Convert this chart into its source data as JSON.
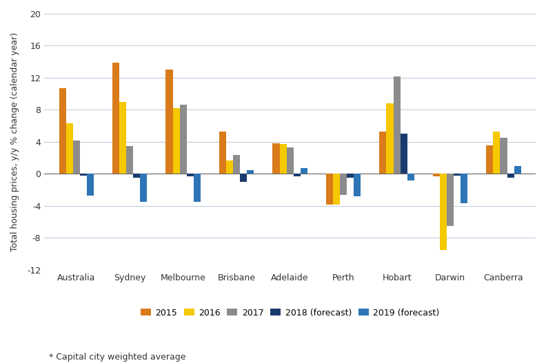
{
  "categories": [
    "Australia",
    "Sydney",
    "Melbourne",
    "Brisbane",
    "Adelaide",
    "Perth",
    "Hobart",
    "Darwin",
    "Canberra"
  ],
  "series": {
    "2015": [
      10.7,
      13.9,
      13.0,
      5.3,
      3.8,
      -3.8,
      5.3,
      -0.3,
      3.6
    ],
    "2016": [
      6.3,
      9.0,
      8.2,
      1.7,
      3.7,
      -3.8,
      8.8,
      -9.5,
      5.3
    ],
    "2017": [
      4.2,
      3.5,
      8.6,
      2.4,
      3.3,
      -2.6,
      12.2,
      -6.5,
      4.5
    ],
    "2018 (forecast)": [
      -0.2,
      -0.5,
      -0.3,
      -1.0,
      -0.3,
      -0.5,
      5.0,
      -0.2,
      -0.5
    ],
    "2019 (forecast)": [
      -2.7,
      -3.5,
      -3.5,
      0.5,
      0.7,
      -2.8,
      -0.8,
      -3.7,
      1.0
    ]
  },
  "colors": {
    "2015": "#D97B1A",
    "2016": "#F5C800",
    "2017": "#8C8C8C",
    "2018 (forecast)": "#1A3B6E",
    "2019 (forecast)": "#2E75B6"
  },
  "ylabel": "Total housing prices, y/y % change (calendar year)",
  "ylim": [
    -12,
    20
  ],
  "yticks": [
    -12,
    -8,
    -4,
    0,
    4,
    8,
    12,
    16,
    20
  ],
  "footnote": "* Capital city weighted average",
  "legend_order": [
    "2015",
    "2016",
    "2017",
    "2018 (forecast)",
    "2019 (forecast)"
  ],
  "background_color": "#FFFFFF",
  "grid_color": "#B8C8D8"
}
